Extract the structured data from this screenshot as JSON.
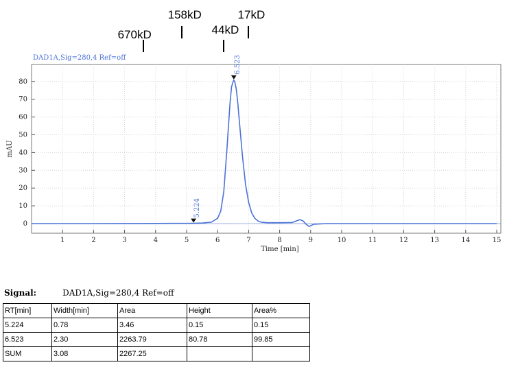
{
  "markers": [
    {
      "label": "670kD",
      "x": 3.6
    },
    {
      "label": "158kD",
      "x": 4.85
    },
    {
      "label": "44kD",
      "x": 6.2
    },
    {
      "label": "17kD",
      "x": 7.0
    }
  ],
  "chart_data": {
    "type": "line",
    "title": "DAD1A,Sig=280,4  Ref=off",
    "xlabel": "Time [min]",
    "ylabel": "mAU",
    "xlim": [
      0,
      15.2
    ],
    "ylim": [
      -3,
      85
    ],
    "xticks": [
      1,
      2,
      3,
      4,
      5,
      6,
      7,
      8,
      9,
      10,
      11,
      12,
      13,
      14,
      15
    ],
    "yticks": [
      0,
      10,
      20,
      30,
      40,
      50,
      60,
      70,
      80
    ],
    "grid": true,
    "series": [
      {
        "color": "#4a72d6",
        "x": [
          0,
          1,
          2,
          3,
          3.5,
          4,
          4.5,
          5,
          5.224,
          5.5,
          5.8,
          6.0,
          6.1,
          6.2,
          6.3,
          6.4,
          6.45,
          6.5,
          6.523,
          6.55,
          6.6,
          6.65,
          6.7,
          6.8,
          6.9,
          7.0,
          7.1,
          7.2,
          7.3,
          7.4,
          7.6,
          8.0,
          8.4,
          8.55,
          8.65,
          8.75,
          8.85,
          8.95,
          9.1,
          9.5,
          10,
          12,
          15
        ],
        "y": [
          0,
          0,
          0,
          0.02,
          0.05,
          0.08,
          0.1,
          0.12,
          0.15,
          0.3,
          0.8,
          3,
          7,
          18,
          42,
          68,
          77,
          80,
          80.78,
          80,
          76,
          68,
          58,
          38,
          22,
          12,
          6,
          3,
          1.5,
          0.8,
          0.5,
          0.5,
          0.6,
          1.6,
          2.2,
          1.6,
          -0.3,
          -1.6,
          -0.4,
          0,
          0,
          0,
          0
        ]
      }
    ],
    "annotations": [
      {
        "text": "5.224",
        "x": 5.224,
        "y": 0.15
      },
      {
        "text": "6.523",
        "x": 6.523,
        "y": 80.78
      }
    ]
  },
  "signal": {
    "label": "Signal:",
    "value": "DAD1A,Sig=280,4  Ref=off"
  },
  "table": {
    "headers": [
      "RT[min]",
      "Width[min]",
      "Area",
      "Height",
      "Area%"
    ],
    "rows": [
      [
        "5.224",
        "0.78",
        "3.46",
        "0.15",
        "0.15"
      ],
      [
        "6.523",
        "2.30",
        "2263.79",
        "80.78",
        "99.85"
      ],
      [
        "SUM",
        "3.08",
        "2267.25",
        "",
        ""
      ]
    ]
  }
}
